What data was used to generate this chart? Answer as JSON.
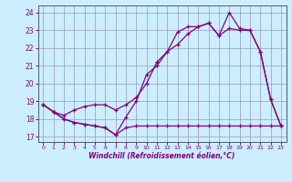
{
  "xlabel": "Windchill (Refroidissement éolien,°C)",
  "x": [
    0,
    1,
    2,
    3,
    4,
    5,
    6,
    7,
    8,
    9,
    10,
    11,
    12,
    13,
    14,
    15,
    16,
    17,
    18,
    19,
    20,
    21,
    22,
    23
  ],
  "line1": [
    18.8,
    18.4,
    18.0,
    17.8,
    17.7,
    17.6,
    17.5,
    17.1,
    18.1,
    19.0,
    20.5,
    21.0,
    21.8,
    22.9,
    23.2,
    23.2,
    23.4,
    22.7,
    23.1,
    23.0,
    23.0,
    21.8,
    19.1,
    17.6
  ],
  "line2": [
    18.8,
    18.4,
    18.0,
    17.8,
    17.7,
    17.6,
    17.5,
    17.1,
    17.5,
    17.6,
    17.6,
    17.6,
    17.6,
    17.6,
    17.6,
    17.6,
    17.6,
    17.6,
    17.6,
    17.6,
    17.6,
    17.6,
    17.6,
    17.6
  ],
  "line3": [
    18.8,
    18.4,
    18.2,
    18.5,
    18.7,
    18.8,
    18.8,
    18.5,
    18.8,
    19.2,
    20.0,
    21.2,
    21.8,
    22.2,
    22.8,
    23.2,
    23.4,
    22.7,
    24.0,
    23.1,
    23.0,
    21.8,
    19.1,
    17.6
  ],
  "line_color": "#800080",
  "bg_color": "#cceeff",
  "grid_color": "#9999bb",
  "xlim": [
    -0.5,
    23.5
  ],
  "ylim": [
    16.7,
    24.4
  ],
  "yticks": [
    17,
    18,
    19,
    20,
    21,
    22,
    23,
    24
  ],
  "xticks": [
    0,
    1,
    2,
    3,
    4,
    5,
    6,
    7,
    8,
    9,
    10,
    11,
    12,
    13,
    14,
    15,
    16,
    17,
    18,
    19,
    20,
    21,
    22,
    23
  ]
}
